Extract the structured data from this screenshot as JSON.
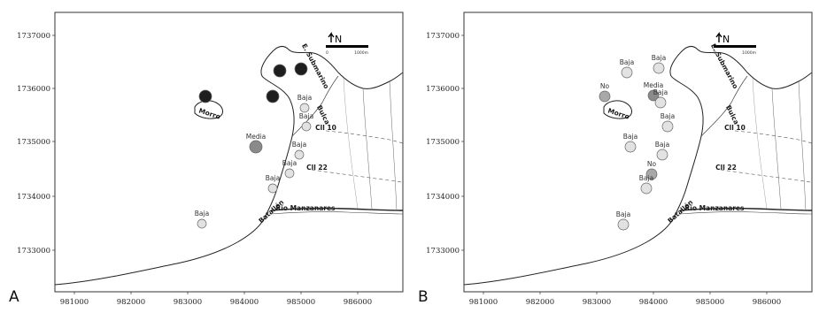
{
  "panels": [
    {
      "letter": "A",
      "x_ticks": [
        "981000",
        "982000",
        "983000",
        "984000",
        "985000",
        "986000"
      ],
      "y_ticks": [
        "1737000",
        "1736000",
        "1735000",
        "1734000",
        "1733000"
      ],
      "places": [
        "Morro",
        "E. Submarino",
        "Bulca",
        "Cll 10",
        "Cll 22",
        "Batallón",
        "Río Manzanares"
      ],
      "north": "N",
      "scale": [
        "0",
        "1000m"
      ],
      "sites": [
        {
          "level": "Alta",
          "label": ""
        },
        {
          "level": "Alta",
          "label": ""
        },
        {
          "level": "Alta",
          "label": ""
        },
        {
          "level": "Alta",
          "label": ""
        },
        {
          "level": "Baja",
          "label": "Baja"
        },
        {
          "level": "Baja",
          "label": "Baja"
        },
        {
          "level": "Media",
          "label": "Media"
        },
        {
          "level": "Baja",
          "label": "Baja"
        },
        {
          "level": "Baja",
          "label": "Baja"
        },
        {
          "level": "Baja",
          "label": "Baja"
        },
        {
          "level": "Baja",
          "label": "Baja"
        }
      ]
    },
    {
      "letter": "B",
      "x_ticks": [
        "981000",
        "982000",
        "983000",
        "984000",
        "985000",
        "986000"
      ],
      "y_ticks": [
        "1737000",
        "1736000",
        "1735000",
        "1734000",
        "1733000"
      ],
      "places": [
        "Morro",
        "E. Submarino",
        "Bulca",
        "Cll 10",
        "Cll 22",
        "Batallón",
        "Río Manzanares"
      ],
      "north": "N",
      "scale": [
        "0",
        "1000m"
      ],
      "sites": [
        {
          "level": "Baja",
          "label": "Baja"
        },
        {
          "level": "Baja",
          "label": "Baja"
        },
        {
          "level": "No",
          "label": "No"
        },
        {
          "level": "Media",
          "label": "Media"
        },
        {
          "level": "Baja",
          "label": "Baja"
        },
        {
          "level": "Baja",
          "label": "Baja"
        },
        {
          "level": "Baja",
          "label": "Baja"
        },
        {
          "level": "Baja",
          "label": "Baja"
        },
        {
          "level": "No",
          "label": "No"
        },
        {
          "level": "Baja",
          "label": "Baja"
        },
        {
          "level": "Baja",
          "label": "Baja"
        }
      ]
    }
  ],
  "level_colors": {
    "Alta": "#1e1e1e",
    "Media": "#8a8a8a",
    "Baja": "#e2e2e2",
    "No": "#a8a8a8"
  }
}
